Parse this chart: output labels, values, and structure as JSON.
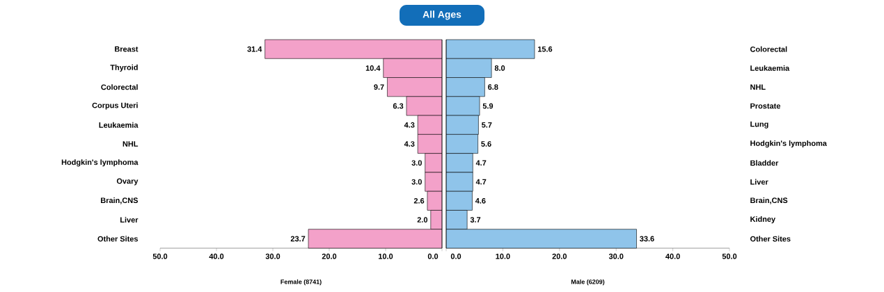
{
  "chart_data": [
    {
      "type": "bar",
      "orientation": "horizontal",
      "title": "All Ages",
      "xlabel": "Female (8741)",
      "categories": [
        "Breast",
        "Thyroid",
        "Colorectal",
        "Corpus Uteri",
        "Leukaemia",
        "NHL",
        "Hodgkin's lymphoma",
        "Ovary",
        "Brain,CNS",
        "Liver",
        "Other Sites"
      ],
      "values": [
        31.4,
        10.4,
        9.7,
        6.3,
        4.3,
        4.3,
        3.0,
        3.0,
        2.6,
        2.0,
        23.7
      ],
      "value_labels": [
        "31.4",
        "10.4",
        "9.7",
        "6.3",
        "4.3",
        "4.3",
        "3.0",
        "3.0",
        "2.6",
        "2.0",
        "23.7"
      ],
      "color": "#f3a1c9",
      "xlim": [
        50,
        0
      ],
      "xticks": [
        {
          "value": 50,
          "label": "50.0"
        },
        {
          "value": 40,
          "label": "40.0"
        },
        {
          "value": 30,
          "label": "30.0"
        },
        {
          "value": 20,
          "label": "20.0"
        },
        {
          "value": 10,
          "label": "10.0"
        },
        {
          "value": 0,
          "label": "0.0"
        }
      ]
    },
    {
      "type": "bar",
      "orientation": "horizontal",
      "xlabel": "Male (6209)",
      "categories": [
        "Colorectal",
        "Leukaemia",
        "NHL",
        "Prostate",
        "Lung",
        "Hodgkin's lymphoma",
        "Bladder",
        "Liver",
        "Brain,CNS",
        "Kidney",
        "Other Sites"
      ],
      "values": [
        15.6,
        8.0,
        6.8,
        5.9,
        5.7,
        5.6,
        4.7,
        4.7,
        4.6,
        3.7,
        33.6
      ],
      "value_labels": [
        "15.6",
        "8.0",
        "6.8",
        "5.9",
        "5.7",
        "5.6",
        "4.7",
        "4.7",
        "4.6",
        "3.7",
        "33.6"
      ],
      "color": "#8fc4ea",
      "xlim": [
        0,
        50
      ],
      "xticks": [
        {
          "value": 0,
          "label": "0.0"
        },
        {
          "value": 10,
          "label": "10.0"
        },
        {
          "value": 20,
          "label": "20.0"
        },
        {
          "value": 30,
          "label": "30.0"
        },
        {
          "value": 40,
          "label": "40.0"
        },
        {
          "value": 50,
          "label": "50.0"
        }
      ]
    }
  ]
}
